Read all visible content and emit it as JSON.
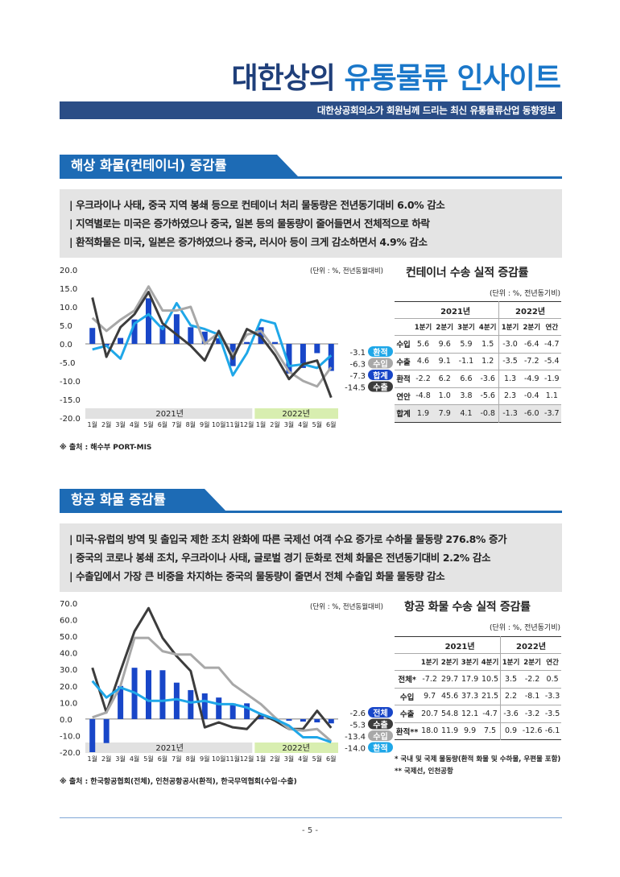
{
  "header": {
    "title_part1": "대한상의",
    "title_part2": "유통물류 인사이트",
    "subtitle": "대한상공회의소가 회원님께 드리는 최신 유통물류산업 동향정보"
  },
  "colors": {
    "navy": "#1f3f7a",
    "blue": "#1d6bb5",
    "bar_blue": "#1846c8",
    "cyan": "#1fa7e8",
    "gray_line": "#a8a8a8",
    "dark_line": "#3c3c3c"
  },
  "sea": {
    "section_title": "해상 화물(컨테이너) 증감률",
    "bullets": [
      "| 우크라이나 사태, 중국 지역 봉쇄 등으로 컨테이너 처리 물동량은 전년동기대비 6.0% 감소",
      "| 지역별로는 미국은 증가하였으나 중국, 일본 등의 물동량이 줄어들면서 전체적으로 하락",
      "| 환적화물은 미국, 일본은 증가하였으나 중국, 러시아 등이 크게 감소하면서 4.9% 감소"
    ],
    "source": "※ 출처 : 해수부 PORT-MIS",
    "chart_data": {
      "type": "bar+line",
      "unit": "(단위 : %, 전년동월대비)",
      "ylim": [
        -20,
        20
      ],
      "yticks": [
        "20.0",
        "15.0",
        "10.0",
        "5.0",
        "0.0",
        "-5.0",
        "-10.0",
        "-15.0",
        "-20.0"
      ],
      "categories": [
        "1월",
        "2월",
        "3월",
        "4월",
        "5월",
        "6월",
        "7월",
        "8월",
        "9월",
        "10월",
        "11월",
        "12월",
        "1월",
        "2월",
        "3월",
        "4월",
        "5월",
        "6월"
      ],
      "year_labels": [
        "2021년",
        "2022년"
      ],
      "series": [
        {
          "name": "합계",
          "kind": "bar",
          "color": "#1846c8",
          "values": [
            4.3,
            -0.5,
            1.6,
            6.6,
            12.3,
            5.0,
            8.0,
            4.5,
            3.3,
            1.5,
            -6.0,
            0.5,
            4.5,
            0.5,
            -8.0,
            -6.5,
            -2.5,
            -7.3
          ]
        },
        {
          "name": "환적",
          "kind": "line",
          "color": "#1fa7e8",
          "values": [
            -1.5,
            -0.5,
            -4.0,
            5.5,
            8.0,
            4.0,
            11.0,
            5.0,
            4.0,
            2.5,
            -8.5,
            -2.5,
            6.5,
            5.5,
            -6.0,
            -5.5,
            -6.5,
            -3.1
          ]
        },
        {
          "name": "수입",
          "kind": "line",
          "color": "#a8a8a8",
          "values": [
            7.0,
            3.5,
            6.5,
            9.0,
            15.5,
            9.0,
            9.0,
            10.0,
            0.0,
            3.0,
            -3.0,
            2.5,
            3.5,
            -1.5,
            -7.5,
            -10.0,
            -11.5,
            -6.3
          ]
        },
        {
          "name": "수출",
          "kind": "line",
          "color": "#3c3c3c",
          "values": [
            12.5,
            -3.5,
            4.5,
            8.0,
            14.0,
            5.5,
            2.5,
            -0.5,
            -4.5,
            3.5,
            -4.0,
            4.0,
            2.0,
            -3.0,
            -9.5,
            -5.5,
            -4.5,
            -14.5
          ]
        }
      ],
      "end_labels": [
        {
          "value": "-3.1",
          "name": "환적",
          "color": "#1fa7e8"
        },
        {
          "value": "-6.3",
          "name": "수입",
          "color": "#a8a8a8"
        },
        {
          "value": "-7.3",
          "name": "합계",
          "color": "#1846c8"
        },
        {
          "value": "-14.5",
          "name": "수출",
          "color": "#3c3c3c"
        }
      ]
    },
    "table": {
      "title": "컨테이너 수송 실적 증감률",
      "unit": "(단위 : %, 전년동기비)",
      "years": [
        "2021년",
        "2022년"
      ],
      "columns": [
        "1분기",
        "2분기",
        "3분기",
        "4분기",
        "1분기",
        "2분기",
        "연간"
      ],
      "rows": [
        {
          "label": "수입",
          "values": [
            "5.6",
            "9.6",
            "5.9",
            "1.5",
            "-3.0",
            "-6.4",
            "-4.7"
          ]
        },
        {
          "label": "수출",
          "values": [
            "4.6",
            "9.1",
            "-1.1",
            "1.2",
            "-3.5",
            "-7.2",
            "-5.4"
          ]
        },
        {
          "label": "환적",
          "values": [
            "-2.2",
            "6.2",
            "6.6",
            "-3.6",
            "1.3",
            "-4.9",
            "-1.9"
          ]
        },
        {
          "label": "연안",
          "values": [
            "-4.8",
            "1.0",
            "3.8",
            "-5.6",
            "2.3",
            "-0.4",
            "1.1"
          ]
        },
        {
          "label": "합계",
          "values": [
            "1.9",
            "7.9",
            "4.1",
            "-0.8",
            "-1.3",
            "-6.0",
            "-3.7"
          ]
        }
      ]
    }
  },
  "air": {
    "section_title": "항공 화물 증감률",
    "bullets": [
      "| 미국·유럽의 방역 및 출입국 제한 조치 완화에 따른 국제선 여객 수요 증가로 수하물 물동량 276.8%  증가",
      "| 중국의 코로나 봉쇄 조치, 우크라이나 사태, 글로벌 경기 둔화로 전체 화물은 전년동기대비 2.2% 감소",
      "| 수출입에서 가장 큰 비중을 차지하는 중국의 물동량이 줄면서 전체 수출입 화물 물동량 감소"
    ],
    "source": "※ 출처 : 한국항공협회(전체), 인천공항공사(환적), 한국무역협회(수입·수출)",
    "chart_data": {
      "type": "bar+line",
      "unit": "(단위 : %, 전년동월대비)",
      "ylim": [
        -20,
        70
      ],
      "yticks": [
        "70.0",
        "60.0",
        "50.0",
        "40.0",
        "30.0",
        "20.0",
        "10.0",
        "0.0",
        "-10.0",
        "-20.0"
      ],
      "categories": [
        "1월",
        "2월",
        "3월",
        "4월",
        "5월",
        "6월",
        "7월",
        "8월",
        "9월",
        "10월",
        "11월",
        "12월",
        "1월",
        "2월",
        "3월",
        "4월",
        "5월",
        "6월"
      ],
      "year_labels": [
        "2021년",
        "2022년"
      ],
      "series": [
        {
          "name": "전체",
          "kind": "bar",
          "color": "#1846c8",
          "values": [
            -20.0,
            -14.5,
            20.0,
            31.0,
            29.5,
            29.5,
            22.0,
            17.5,
            15.5,
            13.0,
            9.5,
            9.5,
            3.0,
            -1.0,
            -1.0,
            -1.5,
            -2.0,
            -2.6
          ]
        },
        {
          "name": "수출",
          "kind": "line",
          "color": "#3c3c3c",
          "values": [
            31.0,
            4.0,
            29.0,
            53.0,
            67.0,
            49.0,
            38.0,
            29.0,
            -5.0,
            -2.0,
            -5.0,
            -6.0,
            3.0,
            -1.0,
            -6.0,
            -6.0,
            5.0,
            -5.3
          ]
        },
        {
          "name": "수입",
          "kind": "line",
          "color": "#a8a8a8",
          "values": [
            1.0,
            4.0,
            20.0,
            49.0,
            49.0,
            41.0,
            39.0,
            39.0,
            31.0,
            31.0,
            21.0,
            15.0,
            9.0,
            1.0,
            -6.0,
            -7.0,
            -6.0,
            -13.4
          ]
        },
        {
          "name": "환적",
          "kind": "line",
          "color": "#1fa7e8",
          "values": [
            23.0,
            13.0,
            19.0,
            16.0,
            11.0,
            11.0,
            12.0,
            10.0,
            11.0,
            9.0,
            9.0,
            7.0,
            3.0,
            0.0,
            -4.0,
            -11.0,
            -11.0,
            -14.0
          ]
        }
      ],
      "end_labels": [
        {
          "value": "-2.6",
          "name": "전체",
          "color": "#1846c8"
        },
        {
          "value": "-5.3",
          "name": "수출",
          "color": "#3c3c3c"
        },
        {
          "value": "-13.4",
          "name": "수입",
          "color": "#a8a8a8"
        },
        {
          "value": "-14.0",
          "name": "환적",
          "color": "#1fa7e8"
        }
      ]
    },
    "table": {
      "title": "항공 화물 수송 실적 증감률",
      "unit": "(단위 : %, 전년동기비)",
      "years": [
        "2021년",
        "2022년"
      ],
      "columns": [
        "1분기",
        "2분기",
        "3분기",
        "4분기",
        "1분기",
        "2분기",
        "연간"
      ],
      "rows": [
        {
          "label": "전체*",
          "values": [
            "-7.2",
            "29.7",
            "17.9",
            "10.5",
            "3.5",
            "-2.2",
            "0.5"
          ]
        },
        {
          "label": "수입",
          "values": [
            "9.7",
            "45.6",
            "37.3",
            "21.5",
            "2.2",
            "-8.1",
            "-3.3"
          ]
        },
        {
          "label": "수출",
          "values": [
            "20.7",
            "54.8",
            "12.1",
            "-4.7",
            "-3.6",
            "-3.2",
            "-3.5"
          ]
        },
        {
          "label": "환적**",
          "values": [
            "18.0",
            "11.9",
            "9.9",
            "7.5",
            "0.9",
            "-12.6",
            "-6.1"
          ]
        }
      ],
      "notes": [
        "* 국내 및 국제 물동량(환적 화물 및 수하물, 우편물 포함)",
        "** 국제선, 인천공항"
      ]
    }
  },
  "footer": {
    "page": "- 5 -"
  }
}
